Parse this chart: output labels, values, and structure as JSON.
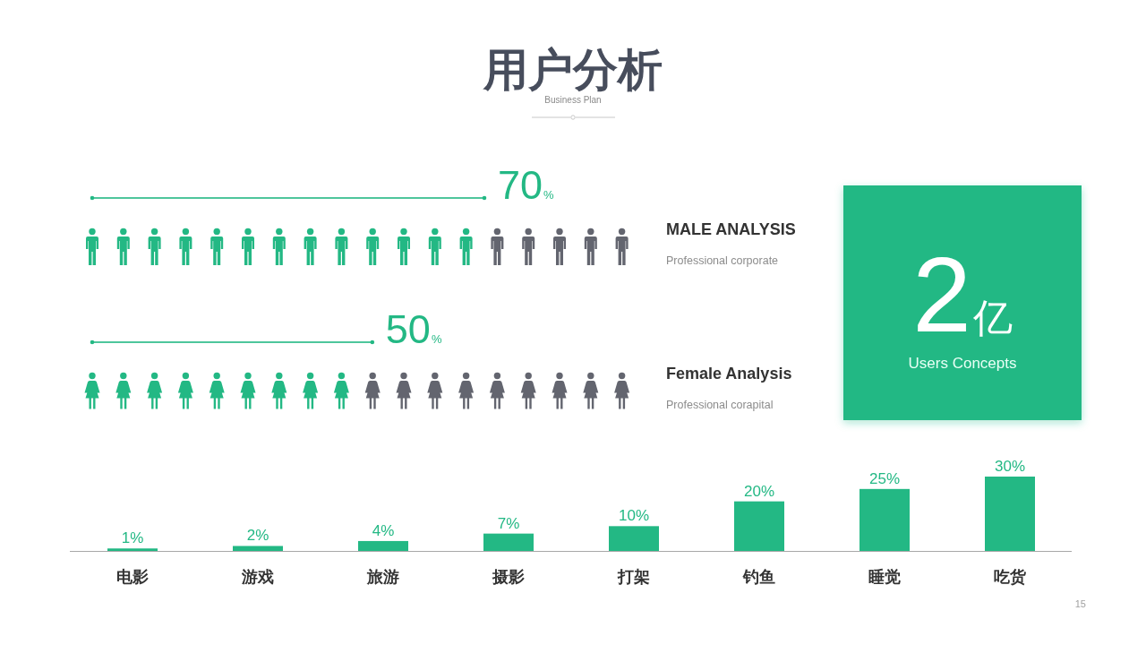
{
  "chart_data": [
    {
      "type": "other",
      "title": "用户分析",
      "subtitle": "Business Plan"
    },
    {
      "type": "bar",
      "orientation": "horizontal",
      "categories": [
        "MALE ANALYSIS",
        "Female Analysis"
      ],
      "values": [
        70,
        50
      ],
      "value_labels": [
        "70%",
        "50%"
      ],
      "color": "#23b884",
      "annotations": [
        "Professional corporate",
        "Professional corapital"
      ]
    },
    {
      "type": "other",
      "annotations": [
        "2亿",
        "Users Concepts"
      ]
    },
    {
      "type": "bar",
      "categories": [
        "电影",
        "游戏",
        "旅游",
        "摄影",
        "打架",
        "钓鱼",
        "睡觉",
        "吃货"
      ],
      "values": [
        1,
        2,
        4,
        7,
        10,
        20,
        25,
        30
      ],
      "value_labels": [
        "1%",
        "2%",
        "4%",
        "7%",
        "10%",
        "20%",
        "25%",
        "30%"
      ],
      "color": "#23b884",
      "tick_labels": "x",
      "annotations": [
        "15"
      ]
    }
  ]
}
